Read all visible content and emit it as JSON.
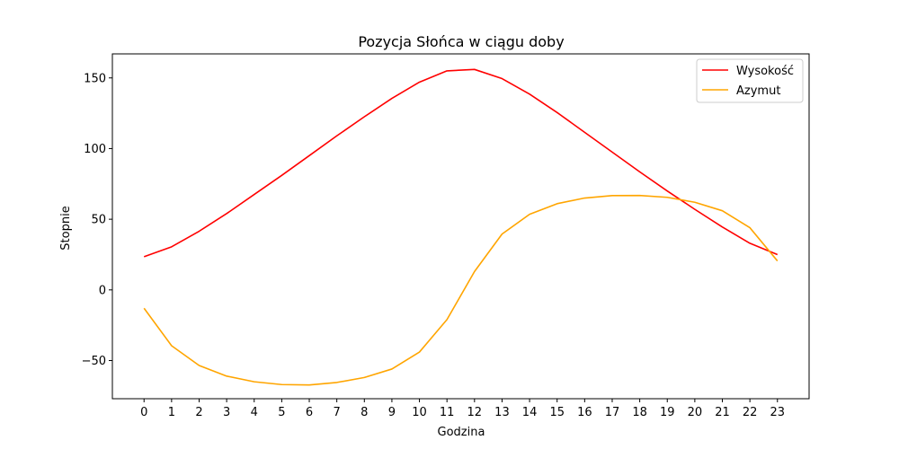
{
  "chart_data": {
    "type": "line",
    "title": "Pozycja Słońca w ciągu doby",
    "xlabel": "Godzina",
    "ylabel": "Stopnie",
    "x": [
      0,
      1,
      2,
      3,
      4,
      5,
      6,
      7,
      8,
      9,
      10,
      11,
      12,
      13,
      14,
      15,
      16,
      17,
      18,
      19,
      20,
      21,
      22,
      23
    ],
    "xlim": [
      -1.15,
      24.15
    ],
    "ylim": [
      -77,
      167
    ],
    "yticks": [
      -50,
      0,
      50,
      100,
      150
    ],
    "ytick_labels": [
      "−50",
      "0",
      "50",
      "100",
      "150"
    ],
    "grid": false,
    "legend_position": "top-right",
    "series": [
      {
        "name": "Wysokość",
        "color": "#ff0000",
        "values": [
          23.5,
          30.5,
          41.5,
          54,
          67.5,
          81,
          95,
          109,
          122.5,
          135.5,
          147,
          155,
          156,
          149.5,
          138.5,
          125.5,
          111.5,
          97.5,
          83.5,
          70,
          57,
          44.5,
          33,
          25
        ]
      },
      {
        "name": "Azymut",
        "color": "#ffa500",
        "values": [
          -13,
          -39.5,
          -53.5,
          -61,
          -65,
          -67,
          -67.3,
          -65.5,
          -62,
          -56,
          -44,
          -21,
          13,
          39.5,
          53.5,
          61,
          65,
          66.7,
          66.8,
          65.5,
          62,
          56,
          44,
          20.5
        ]
      }
    ]
  }
}
